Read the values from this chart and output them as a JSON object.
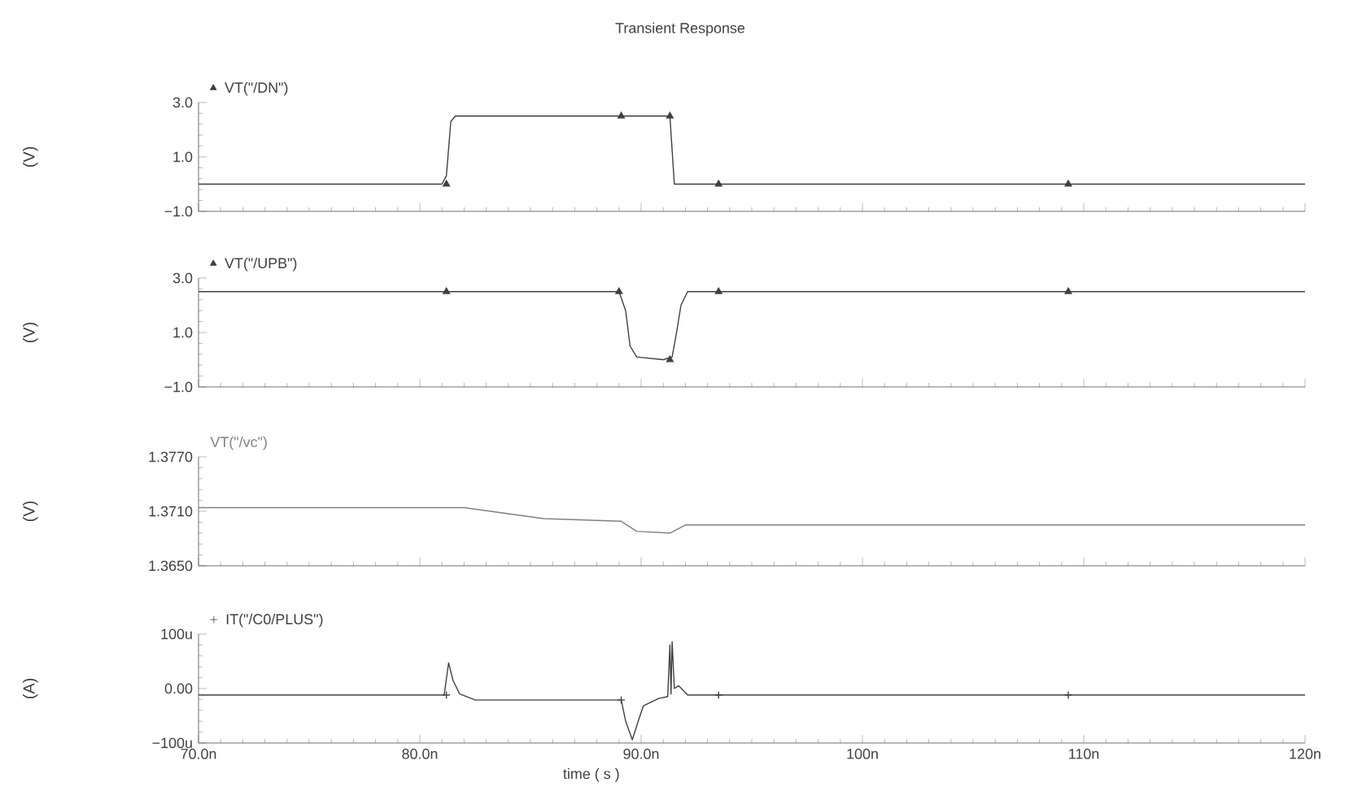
{
  "chart_data": [
    {
      "type": "line",
      "title": "Transient Response",
      "ylabel": "(V)",
      "legend": "top left",
      "tick_labels": "y",
      "xlim": [
        70,
        120
      ],
      "xticks": [
        {
          "value": 70,
          "label": null
        },
        {
          "value": 80,
          "label": null
        },
        {
          "value": 90,
          "label": null
        },
        {
          "value": 100,
          "label": null
        },
        {
          "value": 110,
          "label": null
        },
        {
          "value": 120,
          "label": null
        }
      ],
      "ylim": [
        -1,
        3
      ],
      "yticks": [
        {
          "value": -1,
          "label": "−1.0"
        },
        {
          "value": 1,
          "label": "1.0"
        },
        {
          "value": 3,
          "label": "3.0"
        }
      ],
      "series": [
        {
          "name": "VT(\"/DN\")",
          "color": "#404040",
          "x": [
            70,
            81.0,
            81.2,
            81.4,
            81.6,
            91.3,
            91.5,
            120
          ],
          "values": [
            0,
            0,
            0.3,
            2.3,
            2.5,
            2.5,
            0,
            0
          ]
        },
        {
          "type": "scatter",
          "marker": "triangle",
          "color": "#404040",
          "x": [
            81.2,
            89.1,
            91.3,
            93.5,
            109.3
          ],
          "values": [
            0,
            2.5,
            2.5,
            0,
            0
          ]
        }
      ]
    },
    {
      "type": "line",
      "ylabel": "(V)",
      "legend": "top left",
      "tick_labels": "y",
      "xlim": [
        70,
        120
      ],
      "xticks": [
        {
          "value": 70,
          "label": null
        },
        {
          "value": 80,
          "label": null
        },
        {
          "value": 90,
          "label": null
        },
        {
          "value": 100,
          "label": null
        },
        {
          "value": 110,
          "label": null
        },
        {
          "value": 120,
          "label": null
        }
      ],
      "ylim": [
        -1,
        3
      ],
      "yticks": [
        {
          "value": -1,
          "label": "−1.0"
        },
        {
          "value": 1,
          "label": "1.0"
        },
        {
          "value": 3,
          "label": "3.0"
        }
      ],
      "series": [
        {
          "name": "VT(\"/UPB\")",
          "color": "#404040",
          "x": [
            70,
            89.0,
            89.3,
            89.5,
            89.8,
            91.0,
            91.4,
            91.6,
            91.8,
            92.1,
            120
          ],
          "values": [
            2.5,
            2.5,
            1.8,
            0.5,
            0.1,
            0,
            0.1,
            1.0,
            2.0,
            2.5,
            2.5
          ]
        },
        {
          "type": "scatter",
          "marker": "triangle",
          "color": "#404040",
          "x": [
            81.2,
            89.0,
            91.3,
            93.5,
            109.3
          ],
          "values": [
            2.5,
            2.5,
            0,
            2.5,
            2.5
          ]
        }
      ]
    },
    {
      "type": "line",
      "ylabel": "(V)",
      "legend": "top left",
      "tick_labels": "y",
      "xlim": [
        70,
        120
      ],
      "xticks": [
        {
          "value": 70,
          "label": null
        },
        {
          "value": 80,
          "label": null
        },
        {
          "value": 90,
          "label": null
        },
        {
          "value": 100,
          "label": null
        },
        {
          "value": 110,
          "label": null
        },
        {
          "value": 120,
          "label": null
        }
      ],
      "ylim": [
        1.365,
        1.377
      ],
      "yticks": [
        {
          "value": 1.365,
          "label": "1.3650"
        },
        {
          "value": 1.371,
          "label": "1.3710"
        },
        {
          "value": 1.377,
          "label": "1.3770"
        }
      ],
      "series": [
        {
          "name": "VT(\"/vc\")",
          "color": "#808080",
          "x": [
            70,
            82,
            85.6,
            89.1,
            89.8,
            91.3,
            92.0,
            120
          ],
          "values": [
            1.3714,
            1.3714,
            1.3702,
            1.3699,
            1.3688,
            1.3686,
            1.3695,
            1.3695
          ]
        }
      ]
    },
    {
      "type": "line",
      "xlabel": "time ( s )",
      "ylabel": "(A)",
      "legend": "top left",
      "xlim": [
        70,
        120
      ],
      "xticks": [
        {
          "value": 70,
          "label": "70.0n"
        },
        {
          "value": 80,
          "label": "80.0n"
        },
        {
          "value": 90,
          "label": "90.0n"
        },
        {
          "value": 100,
          "label": "100n"
        },
        {
          "value": 110,
          "label": "110n"
        },
        {
          "value": 120,
          "label": "120n"
        }
      ],
      "ylim": [
        -100,
        100
      ],
      "yticks": [
        {
          "value": -100,
          "label": "−100u"
        },
        {
          "value": 0,
          "label": "0.00"
        },
        {
          "value": 100,
          "label": "100u"
        }
      ],
      "series": [
        {
          "name": "IT(\"/C0/PLUS\")",
          "color": "#404040",
          "x": [
            70,
            81.1,
            81.3,
            81.5,
            81.8,
            82.5,
            89.1,
            89.3,
            89.6,
            89.9,
            90.1,
            90.8,
            91.2,
            91.3,
            91.35,
            91.4,
            91.5,
            91.7,
            92.1,
            120
          ],
          "values": [
            -12,
            -12,
            47,
            15,
            -10,
            -21,
            -21,
            -60,
            -94,
            -56,
            -32,
            -18,
            -15,
            80,
            -10,
            86,
            0,
            5,
            -12,
            -12
          ]
        },
        {
          "type": "scatter",
          "marker": "cross",
          "color": "#404040",
          "x": [
            81.2,
            89.1,
            93.5,
            109.3
          ],
          "values": [
            -12,
            -21,
            -12,
            -12
          ]
        }
      ]
    }
  ]
}
